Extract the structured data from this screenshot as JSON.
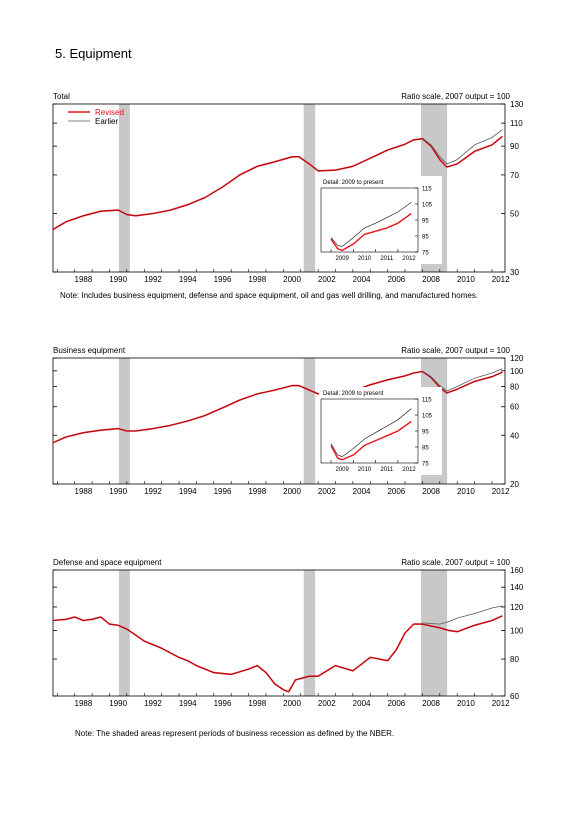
{
  "page": {
    "title": "5. Equipment",
    "note_total": "Note: Includes business equipment, defense and space equipment, oil and gas well drilling, and manufactured homes.",
    "note_bottom": "Note: The shaded areas represent periods of business recession as defined by the NBER."
  },
  "colors": {
    "revised": "#e8141b",
    "earlier": "#5a5a5a",
    "recession": "#c8c8c8"
  },
  "recessions": [
    [
      1990.54,
      1991.17
    ],
    [
      2001.17,
      2001.83
    ],
    [
      2007.92,
      2009.42
    ]
  ],
  "chart_data": [
    {
      "type": "line",
      "title": "Total",
      "scale_label": "Ratio scale, 2007 output = 100",
      "yscale": "log",
      "xlim": [
        1986.75,
        2012.75
      ],
      "ylim": [
        30,
        130
      ],
      "yticks": [
        30,
        50,
        70,
        90,
        110,
        130
      ],
      "xticks": [
        1988,
        1990,
        1992,
        1994,
        1996,
        1998,
        2000,
        2002,
        2004,
        2006,
        2008,
        2010,
        2012
      ],
      "legend": {
        "position": "top-left",
        "entries": [
          "Revised",
          "Earlier"
        ]
      },
      "series": [
        {
          "name": "Revised",
          "points": [
            [
              1986.75,
              43.5
            ],
            [
              1987.5,
              46.5
            ],
            [
              1988.5,
              49
            ],
            [
              1989.5,
              51
            ],
            [
              1990.5,
              51.5
            ],
            [
              1991.0,
              49.5
            ],
            [
              1991.5,
              49
            ],
            [
              1992.5,
              50
            ],
            [
              1993.5,
              51.5
            ],
            [
              1994.5,
              54
            ],
            [
              1995.5,
              57.5
            ],
            [
              1996.5,
              63
            ],
            [
              1997.5,
              70
            ],
            [
              1998.5,
              75.5
            ],
            [
              1999.5,
              78.5
            ],
            [
              2000.5,
              82
            ],
            [
              2000.9,
              82
            ],
            [
              2001.5,
              77
            ],
            [
              2002.0,
              72.5
            ],
            [
              2003.0,
              73
            ],
            [
              2004.0,
              75.5
            ],
            [
              2005.0,
              81
            ],
            [
              2006.0,
              87
            ],
            [
              2007.0,
              91.5
            ],
            [
              2007.5,
              95
            ],
            [
              2008.0,
              96
            ],
            [
              2008.5,
              90
            ],
            [
              2009.0,
              80
            ],
            [
              2009.4,
              75
            ],
            [
              2010.0,
              77
            ],
            [
              2011.0,
              86
            ],
            [
              2012.0,
              91
            ],
            [
              2012.6,
              98
            ]
          ]
        },
        {
          "name": "Earlier",
          "points": [
            [
              2008.0,
              96.5
            ],
            [
              2008.5,
              91
            ],
            [
              2009.0,
              82
            ],
            [
              2009.4,
              77
            ],
            [
              2010.0,
              80
            ],
            [
              2011.0,
              91
            ],
            [
              2012.0,
              97
            ],
            [
              2012.6,
              104
            ]
          ]
        }
      ],
      "inset": {
        "title": "Detail: 2009 to present",
        "xlim": [
          2008.55,
          2012.9
        ],
        "ylim": [
          75,
          115
        ],
        "yticks": [
          75,
          85,
          95,
          105,
          115
        ],
        "xticks": [
          2009,
          2010,
          2011,
          2012
        ],
        "series": [
          {
            "name": "Revised",
            "points": [
              [
                2009.0,
                83
              ],
              [
                2009.3,
                77
              ],
              [
                2009.5,
                76
              ],
              [
                2010.0,
                80
              ],
              [
                2010.5,
                86
              ],
              [
                2011.0,
                88
              ],
              [
                2011.5,
                90
              ],
              [
                2012.0,
                93
              ],
              [
                2012.6,
                99
              ]
            ]
          },
          {
            "name": "Earlier",
            "points": [
              [
                2009.0,
                84
              ],
              [
                2009.3,
                79
              ],
              [
                2009.5,
                78.5
              ],
              [
                2010.0,
                84
              ],
              [
                2010.5,
                90
              ],
              [
                2011.0,
                93
              ],
              [
                2011.5,
                96.5
              ],
              [
                2012.0,
                100
              ],
              [
                2012.6,
                106
              ]
            ]
          }
        ]
      }
    },
    {
      "type": "line",
      "title": "Business equipment",
      "scale_label": "Ratio scale, 2007 output = 100",
      "yscale": "log",
      "xlim": [
        1986.75,
        2012.75
      ],
      "ylim": [
        20,
        120
      ],
      "yticks": [
        20,
        40,
        60,
        80,
        100,
        120
      ],
      "xticks": [
        1988,
        1990,
        1992,
        1994,
        1996,
        1998,
        2000,
        2002,
        2004,
        2006,
        2008,
        2010,
        2012
      ],
      "series": [
        {
          "name": "Revised",
          "points": [
            [
              1986.75,
              36
            ],
            [
              1987.5,
              39
            ],
            [
              1988.5,
              41.5
            ],
            [
              1989.5,
              43
            ],
            [
              1990.5,
              44
            ],
            [
              1991.0,
              42.5
            ],
            [
              1991.5,
              42.5
            ],
            [
              1992.5,
              44
            ],
            [
              1993.5,
              46
            ],
            [
              1994.5,
              49
            ],
            [
              1995.5,
              53
            ],
            [
              1996.5,
              59
            ],
            [
              1997.5,
              66
            ],
            [
              1998.5,
              72
            ],
            [
              1999.5,
              76
            ],
            [
              2000.5,
              81
            ],
            [
              2000.9,
              81
            ],
            [
              2001.5,
              76
            ],
            [
              2002.0,
              72
            ],
            [
              2003.0,
              72
            ],
            [
              2004.0,
              75
            ],
            [
              2005.0,
              82
            ],
            [
              2006.0,
              88
            ],
            [
              2007.0,
              93
            ],
            [
              2007.5,
              97
            ],
            [
              2008.0,
              99
            ],
            [
              2008.5,
              91
            ],
            [
              2009.0,
              79
            ],
            [
              2009.4,
              73
            ],
            [
              2010.0,
              77
            ],
            [
              2011.0,
              86
            ],
            [
              2012.0,
              92
            ],
            [
              2012.6,
              98
            ]
          ]
        },
        {
          "name": "Earlier",
          "points": [
            [
              2008.0,
              99.5
            ],
            [
              2008.5,
              92
            ],
            [
              2009.0,
              81
            ],
            [
              2009.4,
              75
            ],
            [
              2010.0,
              80
            ],
            [
              2011.0,
              90
            ],
            [
              2012.0,
              97
            ],
            [
              2012.6,
              103
            ]
          ]
        }
      ],
      "inset": {
        "title": "Detail: 2009 to present",
        "xlim": [
          2008.55,
          2012.9
        ],
        "ylim": [
          75,
          115
        ],
        "yticks": [
          75,
          85,
          95,
          105,
          115
        ],
        "xticks": [
          2009,
          2010,
          2011,
          2012
        ],
        "series": [
          {
            "name": "Revised",
            "points": [
              [
                2009.0,
                86
              ],
              [
                2009.3,
                78
              ],
              [
                2009.5,
                77
              ],
              [
                2010.0,
                80
              ],
              [
                2010.5,
                86
              ],
              [
                2011.0,
                89
              ],
              [
                2011.5,
                92
              ],
              [
                2012.0,
                95
              ],
              [
                2012.6,
                101
              ]
            ]
          },
          {
            "name": "Earlier",
            "points": [
              [
                2009.0,
                87
              ],
              [
                2009.3,
                80
              ],
              [
                2009.5,
                79
              ],
              [
                2010.0,
                84
              ],
              [
                2010.5,
                90
              ],
              [
                2011.0,
                94
              ],
              [
                2011.5,
                98
              ],
              [
                2012.0,
                102
              ],
              [
                2012.6,
                109
              ]
            ]
          }
        ]
      }
    },
    {
      "type": "line",
      "title": "Defense and space equipment",
      "scale_label": "Ratio scale, 2007 output = 100",
      "yscale": "log",
      "xlim": [
        1986.75,
        2012.75
      ],
      "ylim": [
        60,
        160
      ],
      "yticks": [
        60,
        80,
        100,
        120,
        140,
        160
      ],
      "xticks": [
        1988,
        1990,
        1992,
        1994,
        1996,
        1998,
        2000,
        2002,
        2004,
        2006,
        2008,
        2010,
        2012
      ],
      "series": [
        {
          "name": "Revised",
          "points": [
            [
              1986.75,
              108
            ],
            [
              1987.5,
              109
            ],
            [
              1988.0,
              111
            ],
            [
              1988.5,
              108
            ],
            [
              1989.0,
              109
            ],
            [
              1989.5,
              111
            ],
            [
              1990.0,
              105
            ],
            [
              1990.5,
              104
            ],
            [
              1991.0,
              101
            ],
            [
              1992.0,
              92
            ],
            [
              1993.0,
              87
            ],
            [
              1994.0,
              81
            ],
            [
              1994.5,
              79
            ],
            [
              1995.0,
              76
            ],
            [
              1995.5,
              74
            ],
            [
              1996.0,
              72
            ],
            [
              1997.0,
              71
            ],
            [
              1998.0,
              74
            ],
            [
              1998.5,
              76
            ],
            [
              1999.0,
              72
            ],
            [
              1999.5,
              66
            ],
            [
              2000.0,
              63
            ],
            [
              2000.3,
              62
            ],
            [
              2000.7,
              68
            ],
            [
              2001.5,
              70
            ],
            [
              2002.0,
              70
            ],
            [
              2003.0,
              76
            ],
            [
              2004.0,
              73
            ],
            [
              2005.0,
              81
            ],
            [
              2006.0,
              79
            ],
            [
              2006.5,
              86
            ],
            [
              2007.0,
              98
            ],
            [
              2007.5,
              105
            ],
            [
              2008.0,
              105
            ],
            [
              2009.0,
              102
            ],
            [
              2009.5,
              100
            ],
            [
              2010.0,
              99
            ],
            [
              2011.0,
              104
            ],
            [
              2012.0,
              108
            ],
            [
              2012.6,
              112
            ]
          ]
        },
        {
          "name": "Earlier",
          "points": [
            [
              2008.0,
              106
            ],
            [
              2009.0,
              105
            ],
            [
              2009.5,
              107
            ],
            [
              2010.0,
              110
            ],
            [
              2011.0,
              114
            ],
            [
              2012.0,
              119
            ],
            [
              2012.6,
              121
            ]
          ]
        }
      ]
    }
  ]
}
